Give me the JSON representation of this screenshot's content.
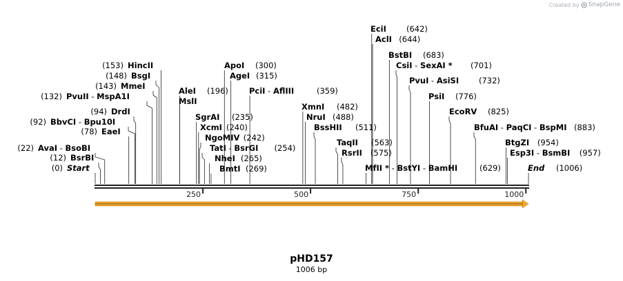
{
  "credit": {
    "prefix": "Created by",
    "brand": "SnapGene"
  },
  "plasmid": {
    "name": "pHD157",
    "length_label": "1006 bp",
    "length": 1006
  },
  "axis": {
    "ticks": [
      250,
      500,
      750,
      1000
    ]
  },
  "feature": {
    "start": 1,
    "end": 1006,
    "color": "#f0a830",
    "name": ""
  },
  "sites": [
    {
      "parts": [
        {
          "t": "AvaI"
        },
        {
          "t": "BsoBI"
        }
      ],
      "pos": "(22)",
      "bp": 22
    },
    {
      "parts": [
        {
          "t": "BsrBI"
        }
      ],
      "pos": "(12)",
      "bp": 12
    },
    {
      "parts": [
        {
          "t": "Start",
          "italic": true
        }
      ],
      "pos": "(0)",
      "bp": 0
    },
    {
      "parts": [
        {
          "t": "BbvCI"
        },
        {
          "t": "Bpu10I"
        }
      ],
      "pos": "(92)",
      "bp": 92
    },
    {
      "parts": [
        {
          "t": "DrdI"
        }
      ],
      "pos": "(94)",
      "bp": 94
    },
    {
      "parts": [
        {
          "t": "EaeI"
        }
      ],
      "pos": "(78)",
      "bp": 78
    },
    {
      "parts": [
        {
          "t": "PvuII"
        },
        {
          "t": "MspA1I"
        }
      ],
      "pos": "(132)",
      "bp": 132
    },
    {
      "parts": [
        {
          "t": "MmeI"
        }
      ],
      "pos": "(143)",
      "bp": 143
    },
    {
      "parts": [
        {
          "t": "BsgI"
        }
      ],
      "pos": "(148)",
      "bp": 148
    },
    {
      "parts": [
        {
          "t": "HincII"
        }
      ],
      "pos": "(153)",
      "bp": 153
    },
    {
      "parts": [
        {
          "t": "AleI"
        }
      ],
      "pos": "(196)",
      "bp": 196
    },
    {
      "parts": [
        {
          "t": "MslI"
        }
      ],
      "pos": "",
      "bp": 196
    },
    {
      "parts": [
        {
          "t": "SgrAI"
        }
      ],
      "pos": "(235)",
      "bp": 235
    },
    {
      "parts": [
        {
          "t": "XcmI"
        }
      ],
      "pos": "(240)",
      "bp": 240
    },
    {
      "parts": [
        {
          "t": "NgoMIV"
        }
      ],
      "pos": "(242)",
      "bp": 242
    },
    {
      "parts": [
        {
          "t": "TatI"
        },
        {
          "t": "BsrGI"
        }
      ],
      "pos": "(254)",
      "bp": 254
    },
    {
      "parts": [
        {
          "t": "NheI"
        }
      ],
      "pos": "(265)",
      "bp": 265
    },
    {
      "parts": [
        {
          "t": "BmtI"
        }
      ],
      "pos": "(269)",
      "bp": 269
    },
    {
      "parts": [
        {
          "t": "ApoI"
        }
      ],
      "pos": "(300)",
      "bp": 300
    },
    {
      "parts": [
        {
          "t": "AgeI"
        }
      ],
      "pos": "(315)",
      "bp": 315
    },
    {
      "parts": [
        {
          "t": "PciI"
        },
        {
          "t": "AflIII"
        }
      ],
      "pos": "(359)",
      "bp": 359
    },
    {
      "parts": [
        {
          "t": "XmnI"
        }
      ],
      "pos": "(482)",
      "bp": 482
    },
    {
      "parts": [
        {
          "t": "NruI"
        }
      ],
      "pos": "(488)",
      "bp": 488
    },
    {
      "parts": [
        {
          "t": "BssHII"
        }
      ],
      "pos": "(511)",
      "bp": 511
    },
    {
      "parts": [
        {
          "t": "TaqII"
        }
      ],
      "pos": "(563)",
      "bp": 563
    },
    {
      "parts": [
        {
          "t": "RsrII"
        }
      ],
      "pos": "(575)",
      "bp": 575
    },
    {
      "parts": [
        {
          "t": "MfII *"
        },
        {
          "t": "BstYI"
        },
        {
          "t": "BamHI"
        }
      ],
      "pos": "(629)",
      "bp": 629
    },
    {
      "parts": [
        {
          "t": "EciI"
        }
      ],
      "pos": "(642)",
      "bp": 642
    },
    {
      "parts": [
        {
          "t": "AclI"
        }
      ],
      "pos": "(644)",
      "bp": 644
    },
    {
      "parts": [
        {
          "t": "BstBI"
        }
      ],
      "pos": "(683)",
      "bp": 683
    },
    {
      "parts": [
        {
          "t": "CsiI"
        },
        {
          "t": "SexAI *"
        }
      ],
      "pos": "(701)",
      "bp": 701
    },
    {
      "parts": [
        {
          "t": "PvuI"
        },
        {
          "t": "AsiSI"
        }
      ],
      "pos": "(732)",
      "bp": 732
    },
    {
      "parts": [
        {
          "t": "PsiI"
        }
      ],
      "pos": "(776)",
      "bp": 776
    },
    {
      "parts": [
        {
          "t": "EcoRV"
        }
      ],
      "pos": "(825)",
      "bp": 825
    },
    {
      "parts": [
        {
          "t": "BfuAI"
        },
        {
          "t": "PaqCI"
        },
        {
          "t": "BspMI"
        }
      ],
      "pos": "(883)",
      "bp": 883
    },
    {
      "parts": [
        {
          "t": "BtgZI"
        }
      ],
      "pos": "(954)",
      "bp": 954
    },
    {
      "parts": [
        {
          "t": "Esp3I"
        },
        {
          "t": "BsmBI"
        }
      ],
      "pos": "(957)",
      "bp": 957
    },
    {
      "parts": [
        {
          "t": "End",
          "italic": true
        }
      ],
      "pos": "(1006)",
      "bp": 1006
    }
  ]
}
